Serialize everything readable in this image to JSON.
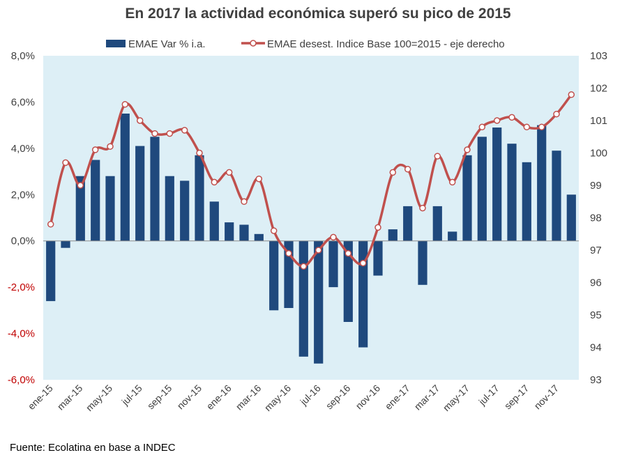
{
  "title": "En 2017 la actividad económica superó su pico de 2015",
  "source": "Fuente: Ecolatina en base a INDEC",
  "colors": {
    "bar": "#1F497D",
    "line": "#C0504D",
    "plot_bg": "#DDEFF6",
    "negative_tick": "#C00000",
    "positive_tick": "#404040"
  },
  "chart_data": {
    "type": "bar",
    "combo": "bar + line (dual axis)",
    "categories": [
      "ene-15",
      "feb-15",
      "mar-15",
      "abr-15",
      "may-15",
      "jun-15",
      "jul-15",
      "ago-15",
      "sep-15",
      "oct-15",
      "nov-15",
      "dic-15",
      "ene-16",
      "feb-16",
      "mar-16",
      "abr-16",
      "may-16",
      "jun-16",
      "jul-16",
      "ago-16",
      "sep-16",
      "oct-16",
      "nov-16",
      "dic-16",
      "ene-17",
      "feb-17",
      "mar-17",
      "abr-17",
      "may-17",
      "jun-17",
      "jul-17",
      "ago-17",
      "sep-17",
      "oct-17",
      "nov-17",
      "dic-17"
    ],
    "x_tick_labels": [
      "ene-15",
      "mar-15",
      "may-15",
      "jul-15",
      "sep-15",
      "nov-15",
      "ene-16",
      "mar-16",
      "may-16",
      "jul-16",
      "sep-16",
      "nov-16",
      "ene-17",
      "mar-17",
      "may-17",
      "jul-17",
      "sep-17",
      "nov-17"
    ],
    "series": [
      {
        "name": "EMAE Var % i.a.",
        "type": "bar",
        "axis": "left",
        "values": [
          -2.6,
          -0.3,
          2.8,
          3.5,
          2.8,
          5.5,
          4.1,
          4.5,
          2.8,
          2.6,
          3.7,
          1.7,
          0.8,
          0.7,
          0.3,
          -3.0,
          -2.9,
          -5.0,
          -5.3,
          -2.0,
          -3.5,
          -4.6,
          -1.5,
          0.5,
          1.5,
          -1.9,
          1.5,
          0.4,
          3.7,
          4.5,
          4.9,
          4.2,
          3.4,
          5.0,
          3.9,
          2.0
        ]
      },
      {
        "name": "EMAE desest. Indice Base 100=2015 - eje derecho",
        "type": "line",
        "axis": "right",
        "values": [
          97.8,
          99.7,
          99.0,
          100.1,
          100.2,
          101.5,
          101.0,
          100.6,
          100.6,
          100.7,
          100.0,
          99.1,
          99.4,
          98.5,
          99.2,
          97.6,
          96.9,
          96.5,
          97.0,
          97.4,
          96.9,
          96.6,
          97.7,
          99.4,
          99.5,
          98.3,
          99.9,
          99.1,
          100.1,
          100.8,
          101.0,
          101.1,
          100.8,
          100.8,
          101.2,
          101.8
        ]
      }
    ],
    "y_left": {
      "ylim": [
        -6,
        8
      ],
      "ticks": [
        "-6,0%",
        "-4,0%",
        "-2,0%",
        "0,0%",
        "2,0%",
        "4,0%",
        "6,0%",
        "8,0%"
      ]
    },
    "y_right": {
      "ylim": [
        93,
        103
      ],
      "ticks": [
        "93",
        "94",
        "95",
        "96",
        "97",
        "98",
        "99",
        "100",
        "101",
        "102",
        "103"
      ]
    },
    "grid": false,
    "legend": "top-center"
  }
}
